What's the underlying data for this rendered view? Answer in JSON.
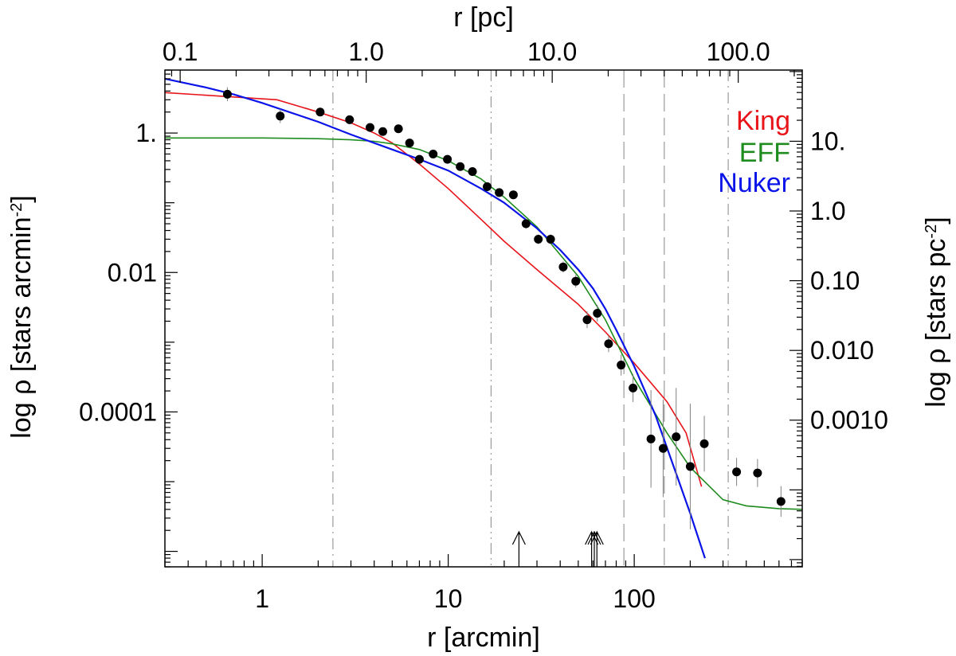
{
  "chart_data": {
    "type": "line",
    "x_scale": "log",
    "y_scale": "log",
    "xlabel": "r [arcmin]",
    "xlabel_top": "r [pc]",
    "ylabel": "log ρ [stars arcmin",
    "ylabel_sup": "-2",
    "ylabel_right": "log ρ [stars pc",
    "ylabel_right_sup": "-2",
    "ylabel_close": "]",
    "xlim": [
      0.3,
      800
    ],
    "ylim": [
      6e-07,
      8
    ],
    "x_ticks": [
      {
        "v": 1,
        "label": "1"
      },
      {
        "v": 10,
        "label": "10"
      },
      {
        "v": 100,
        "label": "100"
      }
    ],
    "y_ticks": [
      {
        "v": 1,
        "label": "1."
      },
      {
        "v": 0.01,
        "label": "0.01"
      },
      {
        "v": 0.0001,
        "label": "0.0001"
      }
    ],
    "top_ticks": [
      {
        "v": 0.1,
        "label": "0.1"
      },
      {
        "v": 1.0,
        "label": "1.0"
      },
      {
        "v": 10.0,
        "label": "10.0"
      },
      {
        "v": 100.0,
        "label": "100.0"
      }
    ],
    "right_ticks": [
      {
        "v": 10,
        "label": "10."
      },
      {
        "v": 1.0,
        "label": "1.0"
      },
      {
        "v": 0.1,
        "label": "0.10"
      },
      {
        "v": 0.01,
        "label": "0.010"
      },
      {
        "v": 0.001,
        "label": "0.0010"
      }
    ],
    "pc_per_arcmin": 0.276,
    "right_y_factor": 0.0762,
    "vlines": [
      {
        "x": 2.4,
        "style": "dash-dot"
      },
      {
        "x": 17,
        "style": "dash-dot-dot"
      },
      {
        "x": 88,
        "style": "long-dash"
      },
      {
        "x": 145,
        "style": "long-dash"
      },
      {
        "x": 320,
        "style": "dash-dot"
      }
    ],
    "arrows": [
      24,
      59,
      61,
      63
    ],
    "series": [
      {
        "name": "King",
        "color": "#e8141a",
        "x": [
          0.3,
          1.2,
          2.0,
          3.0,
          4.0,
          5.0,
          7.0,
          10,
          15,
          20,
          30,
          50,
          70,
          100,
          150,
          190,
          230
        ],
        "y": [
          3.8,
          3.0,
          2.0,
          1.4,
          1.0,
          0.72,
          0.36,
          0.16,
          0.058,
          0.028,
          0.011,
          0.0035,
          0.0014,
          0.0005,
          0.00014,
          5e-05,
          8.5e-06
        ]
      },
      {
        "name": "EFF",
        "color": "#1e8c1e",
        "x": [
          0.3,
          1,
          2,
          3,
          4,
          5,
          7,
          10,
          15,
          20,
          30,
          50,
          70,
          100,
          150,
          200,
          300,
          400,
          600,
          800
        ],
        "y": [
          0.85,
          0.85,
          0.83,
          0.8,
          0.76,
          0.7,
          0.58,
          0.4,
          0.22,
          0.12,
          0.045,
          0.0088,
          0.0021,
          0.0003,
          5e-05,
          1.6e-05,
          5.5e-06,
          4.5e-06,
          4.1e-06,
          4e-06
        ]
      },
      {
        "name": "Nuker",
        "color": "#0a14e8",
        "x": [
          0.3,
          0.5,
          0.7,
          1,
          2,
          3,
          5,
          7,
          10,
          15,
          20,
          30,
          40,
          50,
          60,
          70,
          80,
          100,
          130,
          170,
          200,
          240
        ],
        "y": [
          6,
          4.5,
          3.6,
          2.7,
          1.45,
          0.95,
          0.58,
          0.42,
          0.29,
          0.16,
          0.1,
          0.043,
          0.021,
          0.011,
          0.0059,
          0.003,
          0.0015,
          0.00045,
          9e-05,
          1.2e-05,
          3.5e-06,
          8e-07
        ]
      }
    ],
    "data_points": {
      "x": [
        0.65,
        1.25,
        2.05,
        2.95,
        3.8,
        4.45,
        5.4,
        6.2,
        7.0,
        8.3,
        9.9,
        11.6,
        13.5,
        16.2,
        18.8,
        22.4,
        26.2,
        30.5,
        35.5,
        41.5,
        48.5,
        55.8,
        63.3,
        72.8,
        85,
        98.5,
        123,
        143,
        168,
        200,
        238,
        355,
        460,
        615
      ],
      "y": [
        3.6,
        1.75,
        2.0,
        1.55,
        1.2,
        1.05,
        1.15,
        0.72,
        0.42,
        0.5,
        0.42,
        0.33,
        0.28,
        0.17,
        0.14,
        0.13,
        0.05,
        0.03,
        0.03,
        0.012,
        0.0075,
        0.0021,
        0.0026,
        0.00095,
        0.00047,
        0.00022,
        4.1e-05,
        3e-05,
        4.4e-05,
        1.65e-05,
        3.5e-05,
        1.38e-05,
        1.33e-05,
        5.2e-06
      ],
      "err": [
        0.1,
        0.1,
        0.06,
        0.05,
        0.05,
        0.05,
        0.05,
        0.05,
        0.06,
        0.05,
        0.05,
        0.05,
        0.05,
        0.06,
        0.06,
        0.06,
        0.07,
        0.07,
        0.07,
        0.08,
        0.09,
        0.12,
        0.12,
        0.12,
        0.15,
        0.2,
        0.7,
        0.7,
        0.7,
        0.9,
        0.4,
        0.2,
        0.2,
        0.22
      ]
    },
    "legend_position": "top-right"
  }
}
